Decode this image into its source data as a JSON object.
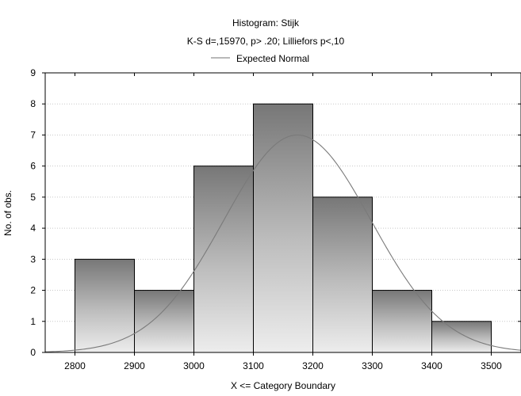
{
  "chart_data": {
    "type": "bar",
    "title": "Histogram: Stijk",
    "subtitle": "K-S d=,15970, p> .20; Lilliefors p<,10",
    "legend": [
      "Expected Normal"
    ],
    "xlabel": "X <= Category Boundary",
    "ylabel": "No. of obs.",
    "bins": [
      {
        "from": 2800,
        "to": 2900,
        "count": 3
      },
      {
        "from": 2900,
        "to": 3000,
        "count": 2
      },
      {
        "from": 3000,
        "to": 3100,
        "count": 6
      },
      {
        "from": 3100,
        "to": 3200,
        "count": 8
      },
      {
        "from": 3200,
        "to": 3300,
        "count": 5
      },
      {
        "from": 3300,
        "to": 3400,
        "count": 2
      },
      {
        "from": 3400,
        "to": 3500,
        "count": 1
      }
    ],
    "xticks": [
      "2800",
      "2900",
      "3000",
      "3100",
      "3200",
      "3300",
      "3400",
      "3500"
    ],
    "yticks": [
      "0",
      "1",
      "2",
      "3",
      "4",
      "5",
      "6",
      "7",
      "8",
      "9"
    ],
    "xlim": [
      2750,
      3550
    ],
    "ylim": [
      0,
      9
    ],
    "expected_normal": {
      "mean": 3174,
      "sd": 124,
      "peak": 7.0
    },
    "grid": true,
    "legend_position": "top-center"
  }
}
